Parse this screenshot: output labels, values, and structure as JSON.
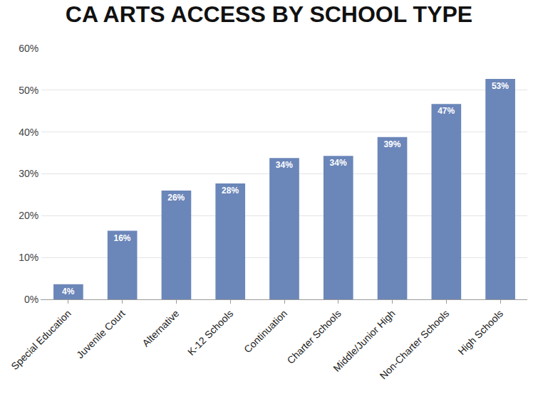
{
  "chart_data": {
    "type": "bar",
    "title": "CA ARTS ACCESS BY SCHOOL TYPE",
    "categories": [
      "Special Education",
      "Juvenile Court",
      "Alternative",
      "K-12 Schools",
      "Continuation",
      "Charter Schools",
      "Middle/Junior High",
      "Non-Charter Schools",
      "High Schools"
    ],
    "values": [
      3.6,
      16.4,
      26,
      27.7,
      33.8,
      34.3,
      38.8,
      46.7,
      52.7
    ],
    "value_labels": [
      "4%",
      "16%",
      "26%",
      "28%",
      "34%",
      "34%",
      "39%",
      "47%",
      "53%"
    ],
    "color": "#6b86b9",
    "ylim": [
      0,
      60
    ],
    "yticks": [
      {
        "value": 0,
        "label": "0%"
      },
      {
        "value": 10,
        "label": "10%"
      },
      {
        "value": 20,
        "label": "20%"
      },
      {
        "value": 30,
        "label": "30%"
      },
      {
        "value": 40,
        "label": "40%"
      },
      {
        "value": 50,
        "label": "50%"
      },
      {
        "value": 60,
        "label": "60%"
      }
    ],
    "grid": true,
    "data_labels": true
  }
}
